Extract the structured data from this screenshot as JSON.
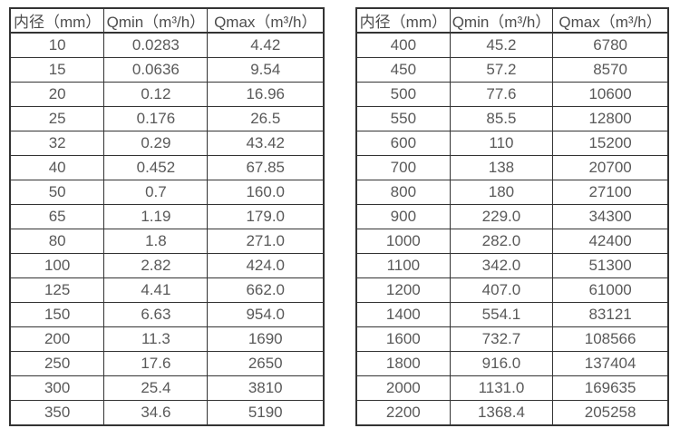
{
  "colors": {
    "border": "#333333",
    "text": "#595959",
    "header_text": "#4d4d4d",
    "background": "#ffffff"
  },
  "chart_data": [
    {
      "type": "table",
      "title": "",
      "columns": [
        "内径（mm）",
        "Qmin（m³/h）",
        "Qmax（m³/h）"
      ],
      "rows": [
        [
          "10",
          "0.0283",
          "4.42"
        ],
        [
          "15",
          "0.0636",
          "9.54"
        ],
        [
          "20",
          "0.12",
          "16.96"
        ],
        [
          "25",
          "0.176",
          "26.5"
        ],
        [
          "32",
          "0.29",
          "43.42"
        ],
        [
          "40",
          "0.452",
          "67.85"
        ],
        [
          "50",
          "0.7",
          "160.0"
        ],
        [
          "65",
          "1.19",
          "179.0"
        ],
        [
          "80",
          "1.8",
          "271.0"
        ],
        [
          "100",
          "2.82",
          "424.0"
        ],
        [
          "125",
          "4.41",
          "662.0"
        ],
        [
          "150",
          "6.63",
          "954.0"
        ],
        [
          "200",
          "11.3",
          "1690"
        ],
        [
          "250",
          "17.6",
          "2650"
        ],
        [
          "300",
          "25.4",
          "3810"
        ],
        [
          "350",
          "34.6",
          "5190"
        ]
      ]
    },
    {
      "type": "table",
      "title": "",
      "columns": [
        "内径（mm）",
        "Qmin（m³/h）",
        "Qmax（m³/h）"
      ],
      "rows": [
        [
          "400",
          "45.2",
          "6780"
        ],
        [
          "450",
          "57.2",
          "8570"
        ],
        [
          "500",
          "77.6",
          "10600"
        ],
        [
          "550",
          "85.5",
          "12800"
        ],
        [
          "600",
          "110",
          "15200"
        ],
        [
          "700",
          "138",
          "20700"
        ],
        [
          "800",
          "180",
          "27100"
        ],
        [
          "900",
          "229.0",
          "34300"
        ],
        [
          "1000",
          "282.0",
          "42400"
        ],
        [
          "1100",
          "342.0",
          "51300"
        ],
        [
          "1200",
          "407.0",
          "61000"
        ],
        [
          "1400",
          "554.1",
          "83121"
        ],
        [
          "1600",
          "732.7",
          "108566"
        ],
        [
          "1800",
          "916.0",
          "137404"
        ],
        [
          "2000",
          "1131.0",
          "169635"
        ],
        [
          "2200",
          "1368.4",
          "205258"
        ]
      ]
    }
  ]
}
